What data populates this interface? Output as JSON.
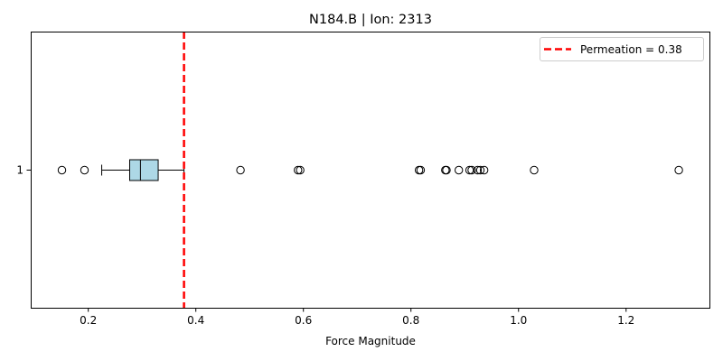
{
  "chart_data": {
    "type": "boxplot",
    "orientation": "horizontal",
    "title": "N184.B | Ion: 2313",
    "xlabel": "Force Magnitude",
    "ylabel": "",
    "xlim": [
      0.093,
      1.355
    ],
    "x_ticks": [
      0.2,
      0.4,
      0.6,
      0.8,
      1.0,
      1.2
    ],
    "x_tick_labels": [
      "0.2",
      "0.4",
      "0.6",
      "0.8",
      "1.0",
      "1.2"
    ],
    "y_tick_labels": [
      "1"
    ],
    "grid": false,
    "box": {
      "category": "1",
      "whisker_low": 0.225,
      "q1": 0.277,
      "median": 0.297,
      "q3": 0.33,
      "whisker_high": 0.378,
      "fill": "#add8e6",
      "outliers": [
        0.151,
        0.193,
        0.483,
        0.59,
        0.594,
        0.815,
        0.818,
        0.864,
        0.866,
        0.889,
        0.909,
        0.913,
        0.924,
        0.929,
        0.936,
        1.029,
        1.298
      ]
    },
    "reference_line": {
      "label": "Permeation = 0.38",
      "value": 0.378,
      "color": "#ff0000",
      "style": "dashed"
    },
    "legend_position": "upper right"
  }
}
